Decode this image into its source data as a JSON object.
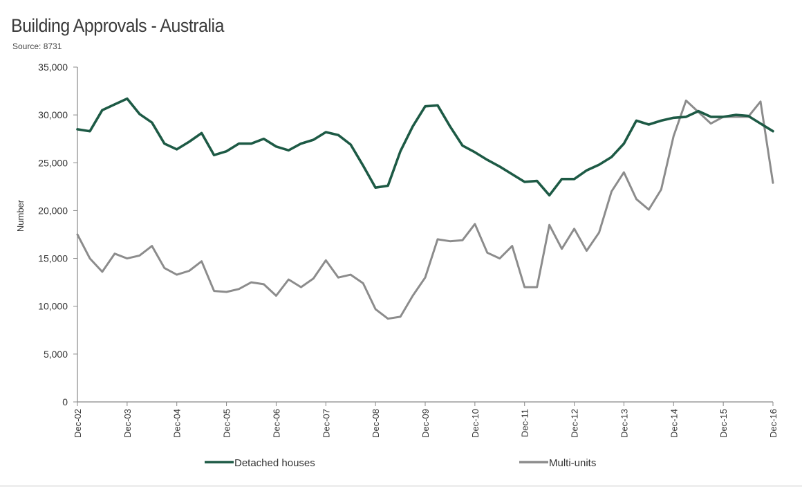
{
  "chart_data": {
    "type": "line",
    "title": "Building Approvals - Australia",
    "subtitle": "Source: 8731",
    "xlabel": "",
    "ylabel": "Number",
    "ylim": [
      0,
      35000
    ],
    "yticks": [
      0,
      5000,
      10000,
      15000,
      20000,
      25000,
      30000,
      35000
    ],
    "ytick_labels": [
      "0",
      "5,000",
      "10,000",
      "15,000",
      "20,000",
      "25,000",
      "30,000",
      "35,000"
    ],
    "x_tick_labels": [
      "Dec-02",
      "Dec-03",
      "Dec-04",
      "Dec-05",
      "Dec-06",
      "Dec-07",
      "Dec-08",
      "Dec-09",
      "Dec-10",
      "Dec-11",
      "Dec-12",
      "Dec-13",
      "Dec-14",
      "Dec-15",
      "Dec-16"
    ],
    "x": [
      "Dec-02",
      "Mar-03",
      "Jun-03",
      "Sep-03",
      "Dec-03",
      "Mar-04",
      "Jun-04",
      "Sep-04",
      "Dec-04",
      "Mar-05",
      "Jun-05",
      "Sep-05",
      "Dec-05",
      "Mar-06",
      "Jun-06",
      "Sep-06",
      "Dec-06",
      "Mar-07",
      "Jun-07",
      "Sep-07",
      "Dec-07",
      "Mar-08",
      "Jun-08",
      "Sep-08",
      "Dec-08",
      "Mar-09",
      "Jun-09",
      "Sep-09",
      "Dec-09",
      "Mar-10",
      "Jun-10",
      "Sep-10",
      "Dec-10",
      "Mar-11",
      "Jun-11",
      "Sep-11",
      "Dec-11",
      "Mar-12",
      "Jun-12",
      "Sep-12",
      "Dec-12",
      "Mar-13",
      "Jun-13",
      "Sep-13",
      "Dec-13",
      "Mar-14",
      "Jun-14",
      "Sep-14",
      "Dec-14",
      "Mar-15",
      "Jun-15",
      "Sep-15",
      "Dec-15",
      "Mar-16",
      "Jun-16",
      "Sep-16",
      "Dec-16"
    ],
    "series": [
      {
        "name": "Detached houses",
        "color": "#1d5a45",
        "values": [
          28500,
          28300,
          30500,
          31100,
          31700,
          30100,
          29200,
          27000,
          26400,
          27200,
          28100,
          25800,
          26200,
          27000,
          27000,
          27500,
          26700,
          26300,
          27000,
          27400,
          28200,
          27900,
          26900,
          24700,
          22400,
          22600,
          26200,
          28800,
          30900,
          31000,
          28800,
          26800,
          26100,
          25300,
          24600,
          23800,
          23000,
          23100,
          21600,
          23300,
          23300,
          24200,
          24800,
          25600,
          27000,
          29400,
          29000,
          29400,
          29700,
          29800,
          30400,
          29800,
          29800,
          30000,
          29900,
          29100,
          28300
        ]
      },
      {
        "name": "Multi-units",
        "color": "#8c8c8c",
        "values": [
          17500,
          15000,
          13600,
          15500,
          15000,
          15300,
          16300,
          14000,
          13300,
          13700,
          14700,
          11600,
          11500,
          11800,
          12500,
          12300,
          11100,
          12800,
          12000,
          12900,
          14800,
          13000,
          13300,
          12400,
          9700,
          8700,
          8900,
          11100,
          13000,
          17000,
          16800,
          16900,
          18600,
          15600,
          15000,
          16300,
          12000,
          12000,
          18500,
          16000,
          18100,
          15800,
          17700,
          22000,
          24000,
          21200,
          20100,
          22200,
          27800,
          31500,
          30300,
          29100,
          29800,
          29800,
          29800,
          31400,
          22900
        ]
      }
    ],
    "legend": {
      "placement": "bottom"
    }
  }
}
